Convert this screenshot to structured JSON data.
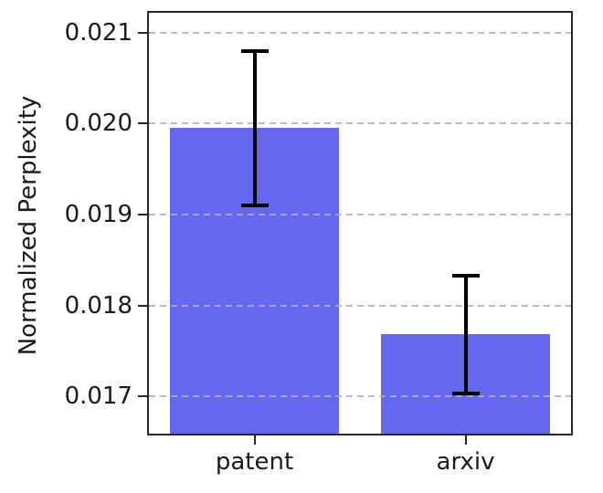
{
  "chart_data": {
    "type": "bar",
    "title": "",
    "xlabel": "",
    "ylabel": "Normalized Perplexity",
    "categories": [
      "patent",
      "arxiv"
    ],
    "values": [
      0.01995,
      0.01768
    ],
    "error_bars": [
      0.00085,
      0.00065
    ],
    "ytick_labels": [
      "0.017",
      "0.018",
      "0.019",
      "0.020",
      "0.021"
    ],
    "yticks": [
      0.017,
      0.018,
      0.019,
      0.02,
      0.021
    ],
    "ylim": [
      0.01659,
      0.02122
    ],
    "bar_width_fraction": 0.8,
    "grid": "horizontal-dashed",
    "legend": "none",
    "bar_color": "#6667ef",
    "grid_color": "#b0b0b0",
    "error_color": "#000000",
    "axis_color": "#262626"
  }
}
